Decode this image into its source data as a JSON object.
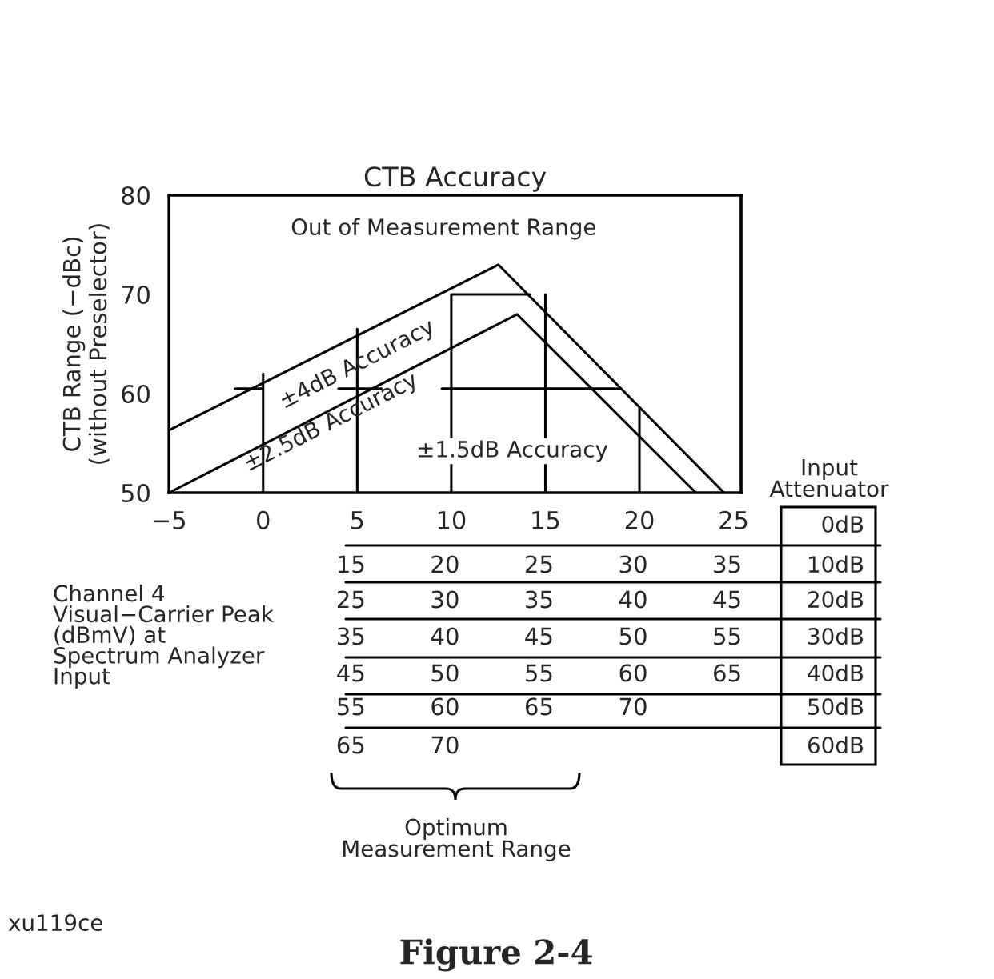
{
  "chart_data": {
    "type": "line",
    "title": "CTB Accuracy",
    "ylabel": "CTB Range (−dBc)\n(without Preselector)",
    "xlim": [
      -5,
      25.4
    ],
    "ylim": [
      50,
      80
    ],
    "xticks": [
      {
        "value": -5,
        "label": "−5"
      },
      0,
      5,
      10,
      15,
      20,
      25
    ],
    "yticks": [
      50,
      60,
      70,
      80
    ],
    "grid": false,
    "marker": "none",
    "line_style": "solid",
    "series": [
      {
        "color": "#000000",
        "x": [
          -5,
          12.5,
          24.5
        ],
        "values": [
          56.3,
          73,
          50
        ]
      },
      {
        "color": "#000000",
        "x": [
          -5,
          13.5,
          23
        ],
        "values": [
          50,
          68,
          50
        ]
      },
      {
        "color": "#000000",
        "x": [
          -1.5,
          0,
          null,
          0,
          0,
          null,
          4,
          6.3,
          null,
          5,
          5,
          null,
          9.5,
          19,
          null,
          10,
          10,
          14.2,
          null,
          15,
          15,
          null,
          20,
          20
        ],
        "values": [
          60.5,
          60.5,
          null,
          50,
          62,
          null,
          60.5,
          60.5,
          null,
          50,
          66.5,
          null,
          60.5,
          60.5,
          null,
          50,
          70,
          70,
          null,
          50,
          70,
          null,
          50,
          58.5
        ]
      }
    ],
    "annotations": [
      "Out of Measurement Range",
      "±4dB Accuracy",
      "±2.5dB Accuracy",
      "±1.5dB Accuracy",
      "Input\nAttenuator",
      "0dB",
      "10dB",
      "20dB",
      "30dB",
      "40dB",
      "50dB",
      "60dB",
      "15 20 25 30 35",
      "25 30 35 40 45",
      "35 40 45 50 55",
      "45 50 55 60 65",
      "55 60 65 70",
      "65 70",
      "Channel 4\nVisual−Carrier Peak\n(dBmV) at\nSpectrum Analyzer\nInput",
      "Optimum\nMeasurement Range",
      "xu119ce",
      "Figure 2-4"
    ]
  }
}
